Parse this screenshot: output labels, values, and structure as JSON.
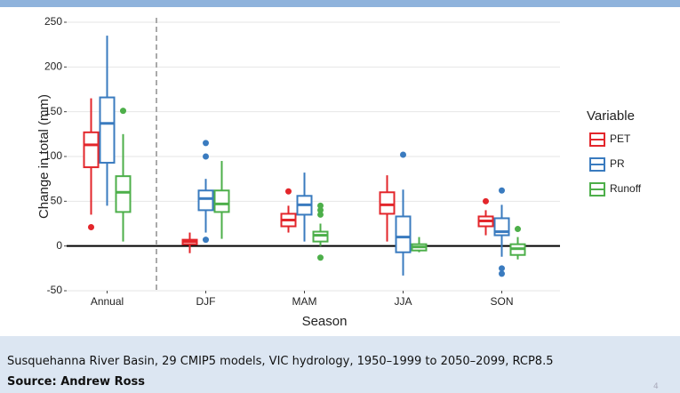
{
  "chart_data": {
    "type": "box",
    "x_label": "Season",
    "y_label": "Change in total (mm)",
    "categories": [
      "Annual",
      "DJF",
      "MAM",
      "JJA",
      "SON"
    ],
    "ylim": [
      -50,
      250
    ],
    "yticks": [
      -50,
      0,
      50,
      100,
      150,
      200,
      250
    ],
    "grid": true,
    "legend_title": "Variable",
    "legend_position": "right",
    "series": [
      {
        "name": "PET",
        "color": "#e3262b",
        "values": [
          {
            "low": 35,
            "q1": 88,
            "median": 113,
            "q3": 127,
            "high": 165,
            "outliers": [
              21
            ]
          },
          {
            "low": -8,
            "q1": 2,
            "median": 5,
            "q3": 7,
            "high": 15,
            "outliers": []
          },
          {
            "low": 15,
            "q1": 22,
            "median": 29,
            "q3": 36,
            "high": 45,
            "outliers": [
              61
            ]
          },
          {
            "low": 5,
            "q1": 36,
            "median": 46,
            "q3": 60,
            "high": 79,
            "outliers": []
          },
          {
            "low": 12,
            "q1": 22,
            "median": 28,
            "q3": 33,
            "high": 40,
            "outliers": [
              50
            ]
          }
        ]
      },
      {
        "name": "PR",
        "color": "#3a7bbf",
        "values": [
          {
            "low": 45,
            "q1": 93,
            "median": 137,
            "q3": 166,
            "high": 235,
            "outliers": []
          },
          {
            "low": 15,
            "q1": 40,
            "median": 53,
            "q3": 62,
            "high": 75,
            "outliers": [
              100,
              115,
              7
            ]
          },
          {
            "low": 5,
            "q1": 35,
            "median": 46,
            "q3": 56,
            "high": 82,
            "outliers": []
          },
          {
            "low": -33,
            "q1": -7,
            "median": 10,
            "q3": 33,
            "high": 63,
            "outliers": [
              102
            ]
          },
          {
            "low": -12,
            "q1": 12,
            "median": 16,
            "q3": 31,
            "high": 46,
            "outliers": [
              62,
              -25,
              -31
            ]
          }
        ]
      },
      {
        "name": "Runoff",
        "color": "#4daf4a",
        "values": [
          {
            "low": 5,
            "q1": 38,
            "median": 60,
            "q3": 78,
            "high": 125,
            "outliers": [
              151
            ]
          },
          {
            "low": 8,
            "q1": 38,
            "median": 47,
            "q3": 62,
            "high": 95,
            "outliers": []
          },
          {
            "low": 0,
            "q1": 5,
            "median": 12,
            "q3": 16,
            "high": 25,
            "outliers": [
              35,
              40,
              45,
              -13
            ]
          },
          {
            "low": -7,
            "q1": -5,
            "median": -1,
            "q3": 2,
            "high": 10,
            "outliers": []
          },
          {
            "low": -15,
            "q1": -10,
            "median": -3,
            "q3": 2,
            "high": 10,
            "outliers": [
              19
            ]
          }
        ]
      }
    ]
  },
  "caption": {
    "line1": "Susquehanna River Basin, 29 CMIP5 models, VIC hydrology, 1950–1999 to 2050–2099, RCP8.5",
    "line2": "Source: Andrew Ross"
  },
  "page_number": "4"
}
